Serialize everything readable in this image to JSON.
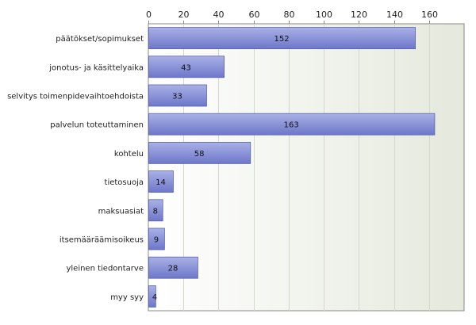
{
  "chart_data": {
    "type": "bar",
    "orientation": "horizontal",
    "categories": [
      "päätökset/sopimukset",
      "jonotus- ja käsittelyaika",
      "selvitys toimenpidevaihtoehdoista",
      "palvelun toteuttaminen",
      "kohtelu",
      "tietosuoja",
      "maksuasiat",
      "itsemääräämisoikeus",
      "yleinen tiedontarve",
      "myy syy"
    ],
    "values": [
      152,
      43,
      33,
      163,
      58,
      14,
      8,
      9,
      28,
      4
    ],
    "xlim": [
      0,
      180
    ],
    "xticks": [
      0,
      20,
      40,
      60,
      80,
      100,
      120,
      140,
      160
    ],
    "xaxis_position": "top",
    "grid": true,
    "data_labels": true,
    "title": "",
    "xlabel": "",
    "ylabel": ""
  },
  "colors": {
    "bar_top": "#a9b1e6",
    "bar_bottom": "#6d77c9",
    "bar_edge": "#5a63b3",
    "plot_bg_left": "#ffffff",
    "plot_bg_right": "#e4e9dc",
    "grid": "#d4d8cc",
    "axis": "#888888"
  }
}
